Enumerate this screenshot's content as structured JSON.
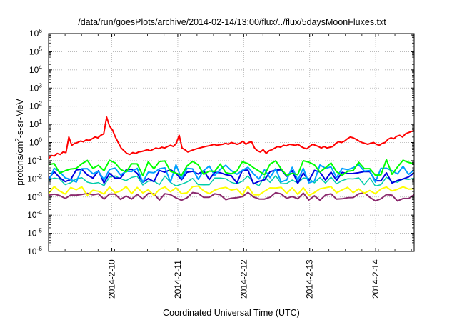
{
  "chart_data": {
    "type": "line",
    "title": "/data/run/goesPlots/archive/2014-02-14/13:00/flux/../flux/5daysMoonFluxes.txt",
    "xlabel": "Coordinated Universal Time (UTC)",
    "ylabel": {
      "base": "protons/cm",
      "sup": "2",
      "rest": "-s-sr-MeV"
    },
    "yscale": "log",
    "ylim": [
      1e-06,
      1000000.0
    ],
    "y_ticks": [
      {
        "value": 1e-06,
        "base": "10",
        "exp": "-6"
      },
      {
        "value": 1e-05,
        "base": "10",
        "exp": "-5"
      },
      {
        "value": 0.0001,
        "base": "10",
        "exp": "-4"
      },
      {
        "value": 0.001,
        "base": "10",
        "exp": "-3"
      },
      {
        "value": 0.01,
        "base": "10",
        "exp": "-2"
      },
      {
        "value": 0.1,
        "base": "10",
        "exp": "-1"
      },
      {
        "value": 1.0,
        "base": "10",
        "exp": "0"
      },
      {
        "value": 10.0,
        "base": "10",
        "exp": "1"
      },
      {
        "value": 100.0,
        "base": "10",
        "exp": "2"
      },
      {
        "value": 1000.0,
        "base": "10",
        "exp": "3"
      },
      {
        "value": 10000.0,
        "base": "10",
        "exp": "4"
      },
      {
        "value": 100000.0,
        "base": "10",
        "exp": "5"
      },
      {
        "value": 1000000.0,
        "base": "10",
        "exp": "6"
      }
    ],
    "xlim": [
      "2014-02-09T01:00",
      "2014-02-14T14:00"
    ],
    "x_ticks": [
      {
        "value": "2014-02-10T00:00",
        "label": "2014-2-10"
      },
      {
        "value": "2014-02-11T00:00",
        "label": "2014-2-11"
      },
      {
        "value": "2014-02-12T00:00",
        "label": "2014-2-12"
      },
      {
        "value": "2014-02-13T00:00",
        "label": "2014-2-13"
      },
      {
        "value": "2014-02-14T00:00",
        "label": "2014-2-14"
      }
    ],
    "grid": true,
    "sampling_hours": 2,
    "series": [
      {
        "color": "#ff0000",
        "line_width": 2.0,
        "values": [
          0.13,
          0.19,
          0.18,
          0.25,
          0.22,
          0.3,
          0.28,
          2.0,
          0.7,
          0.9,
          1.0,
          1.2,
          1.1,
          1.4,
          1.3,
          1.6,
          2.0,
          1.8,
          2.5,
          3.0,
          25,
          8,
          5,
          2.0,
          1.0,
          0.5,
          0.35,
          0.25,
          0.22,
          0.28,
          0.25,
          0.3,
          0.32,
          0.35,
          0.4,
          0.35,
          0.42,
          0.5,
          0.45,
          0.55,
          0.5,
          0.6,
          0.7,
          0.6,
          0.9,
          2.5,
          0.5,
          0.4,
          0.3,
          0.35,
          0.4,
          0.45,
          0.5,
          0.55,
          0.6,
          0.65,
          0.7,
          0.8,
          0.7,
          0.75,
          0.8,
          0.9,
          0.8,
          1.0,
          0.9,
          0.8,
          0.9,
          1.2,
          0.8,
          1.0,
          1.1,
          0.5,
          0.35,
          0.3,
          0.4,
          0.25,
          0.35,
          0.4,
          0.5,
          0.6,
          0.55,
          0.7,
          0.65,
          0.8,
          0.75,
          0.7,
          0.8,
          0.6,
          0.5,
          0.45,
          0.6,
          0.8,
          0.7,
          0.6,
          0.5,
          0.6,
          0.5,
          0.55,
          0.6,
          0.9,
          1.1,
          1.0,
          1.2,
          1.6,
          2.0,
          1.8,
          1.5,
          1.2,
          1.0,
          0.9,
          0.8,
          0.9,
          1.0,
          0.8,
          0.7,
          0.9,
          1.0,
          1.5,
          1.8,
          1.6,
          2.2,
          2.5,
          2.0,
          3.0,
          3.5,
          4.0,
          4.5
        ]
      },
      {
        "color": "#00ff00",
        "line_width": 2.0,
        "value_range": [
          0.015,
          0.12
        ],
        "values": []
      },
      {
        "color": "#00a0ff",
        "line_width": 2.0,
        "value_range": [
          0.006,
          0.06
        ],
        "values": []
      },
      {
        "color": "#0000e0",
        "line_width": 2.0,
        "value_range": [
          0.005,
          0.035
        ],
        "values": []
      },
      {
        "color": "#00ccaa",
        "line_width": 1.5,
        "value_range": [
          0.004,
          0.015
        ],
        "values": []
      },
      {
        "color": "#ffff00",
        "line_width": 2.0,
        "value_range": [
          0.0012,
          0.004
        ],
        "values": []
      },
      {
        "color": "#8b2a6e",
        "line_width": 2.0,
        "value_range": [
          0.0006,
          0.0018
        ],
        "values": []
      }
    ]
  }
}
